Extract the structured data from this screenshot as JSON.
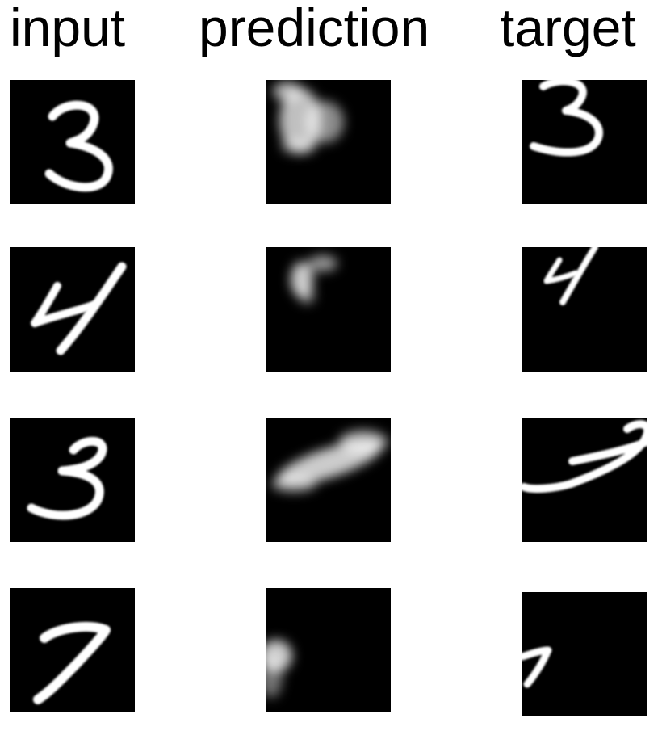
{
  "headers": {
    "input": "input",
    "prediction": "prediction",
    "target": "target"
  },
  "colors": {
    "background": "#ffffff",
    "tile": "#000000",
    "stroke": "#ffffff"
  },
  "rows": [
    {
      "input": "digit-3",
      "prediction": "blurry-digit-blob",
      "target": "digit-3-shifted-up"
    },
    {
      "input": "digit-4",
      "prediction": "blurry-small-digit",
      "target": "digit-4-small"
    },
    {
      "input": "digit-3",
      "prediction": "blurry-elongated-blob",
      "target": "digit-3-stretched"
    },
    {
      "input": "digit-7",
      "prediction": "blurry-edge-blob",
      "target": "digit-7-at-edge"
    }
  ]
}
